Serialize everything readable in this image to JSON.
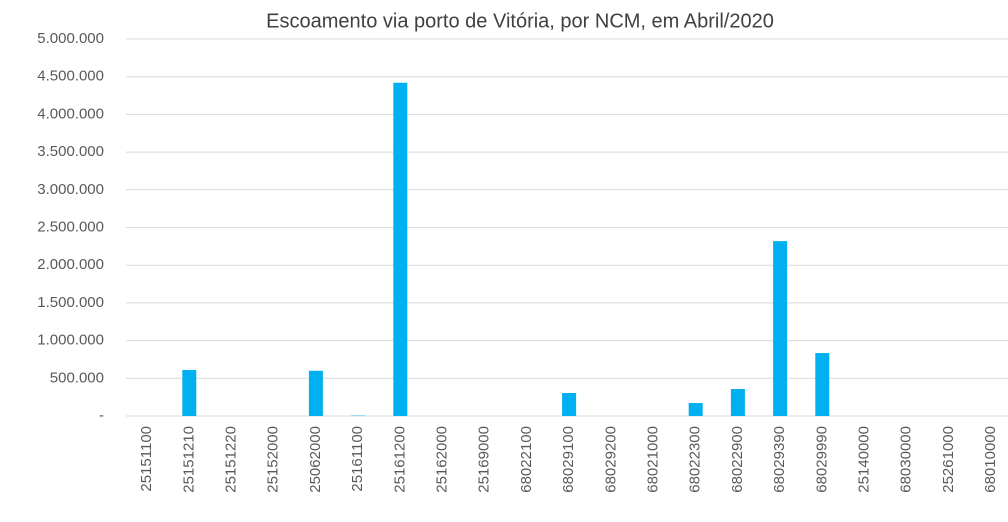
{
  "chart_data": {
    "type": "bar",
    "title": "Escoamento via porto de Vitória, por NCM, em Abril/2020",
    "categories": [
      "25151100",
      "25151210",
      "25151220",
      "25152000",
      "25062000",
      "25161100",
      "25161200",
      "25162000",
      "25169000",
      "68022100",
      "68029100",
      "68029200",
      "68021000",
      "68022300",
      "68022900",
      "68029390",
      "68029990",
      "25140000",
      "68030000",
      "25261000",
      "68010000"
    ],
    "values": [
      0,
      610000,
      0,
      0,
      600000,
      5000,
      4420000,
      0,
      0,
      0,
      305000,
      0,
      0,
      172000,
      358000,
      2320000,
      835000,
      0,
      0,
      0,
      0
    ],
    "color": "#00b0f0",
    "ylim": [
      0,
      5000000
    ],
    "yticks": [
      {
        "value": 0,
        "label": "-"
      },
      {
        "value": 500000,
        "label": "500.000"
      },
      {
        "value": 1000000,
        "label": "1.000.000"
      },
      {
        "value": 1500000,
        "label": "1.500.000"
      },
      {
        "value": 2000000,
        "label": "2.000.000"
      },
      {
        "value": 2500000,
        "label": "2.500.000"
      },
      {
        "value": 3000000,
        "label": "3.000.000"
      },
      {
        "value": 3500000,
        "label": "3.500.000"
      },
      {
        "value": 4000000,
        "label": "4.000.000"
      },
      {
        "value": 4500000,
        "label": "4.500.000"
      },
      {
        "value": 5000000,
        "label": "5.000.000"
      }
    ],
    "grid": true
  }
}
